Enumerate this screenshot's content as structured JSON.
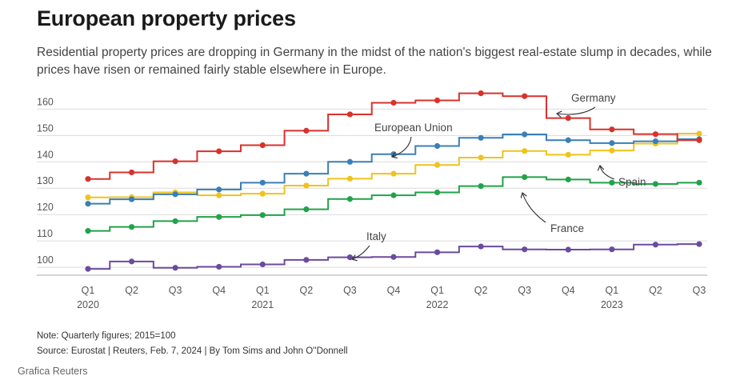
{
  "header": {
    "title": "European property prices",
    "subtitle": "Residential property prices are dropping in Germany in the midst of the nation's biggest real-estate slump in decades, while prices have risen or remained fairly stable elsewhere in Europe."
  },
  "footer": {
    "note": "Note: Quarterly figures; 2015=100",
    "source": "Source: Eurostat | Reuters, Feb. 7, 2024 | By Tom Sims and John O''Donnell",
    "credit": "Grafica Reuters"
  },
  "chart_data": {
    "type": "line",
    "step": true,
    "title": "European property prices",
    "xlabel": "",
    "ylabel": "",
    "ylim": [
      97,
      168
    ],
    "yticks": [
      100,
      110,
      120,
      130,
      140,
      150,
      160
    ],
    "categories": [
      "Q1",
      "Q2",
      "Q3",
      "Q4",
      "Q1",
      "Q2",
      "Q3",
      "Q4",
      "Q1",
      "Q2",
      "Q3",
      "Q4",
      "Q1",
      "Q2",
      "Q3"
    ],
    "years": [
      {
        "label": "2020",
        "index": 0
      },
      {
        "label": "2021",
        "index": 4
      },
      {
        "label": "2022",
        "index": 8
      },
      {
        "label": "2023",
        "index": 12
      }
    ],
    "series": [
      {
        "name": "Germany",
        "color": "#d8322c",
        "values": [
          133.5,
          136,
          140.2,
          144,
          146.3,
          151.8,
          158,
          162.4,
          163.3,
          166,
          164.9,
          156.6,
          152.3,
          150.5,
          148.2
        ]
      },
      {
        "name": "European Union",
        "color": "#3a7fb8",
        "values": [
          124.1,
          125.8,
          127.7,
          129.5,
          132.1,
          135.5,
          140,
          142.9,
          146,
          149.1,
          150.4,
          148.2,
          147.1,
          147.8,
          148.6
        ]
      },
      {
        "name": "Spain",
        "color": "#efc31d",
        "values": [
          126.5,
          126.6,
          128.4,
          127.3,
          127.9,
          131,
          133.6,
          135.5,
          138.8,
          141.6,
          144.1,
          142.7,
          144.3,
          146.9,
          150.7
        ]
      },
      {
        "name": "France",
        "color": "#22a24a",
        "values": [
          113.8,
          115.3,
          117.5,
          119.1,
          119.8,
          122,
          125.9,
          127.3,
          128.4,
          130.8,
          134.2,
          133.3,
          132.1,
          131.6,
          132.1
        ]
      },
      {
        "name": "Italy",
        "color": "#6b4b9e",
        "values": [
          99.4,
          102.2,
          99.8,
          100.2,
          101.1,
          102.8,
          103.8,
          103.9,
          105.7,
          107.9,
          106.8,
          106.7,
          106.8,
          108.6,
          108.8
        ]
      }
    ],
    "annotations": [
      "Germany",
      "European Union",
      "Spain",
      "France",
      "Italy"
    ]
  }
}
